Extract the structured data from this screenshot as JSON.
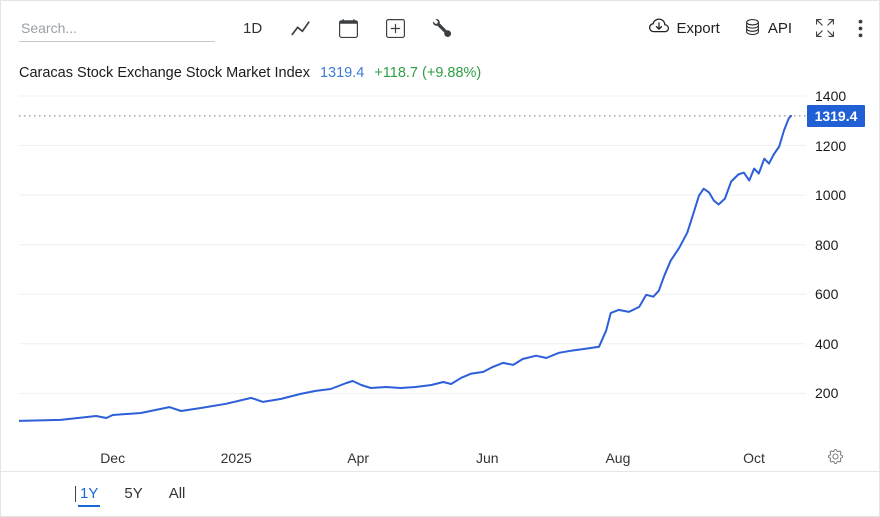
{
  "colors": {
    "line": "#2d5fd9",
    "price_tag_bg": "#2160d4",
    "value_text": "#3d7bd5",
    "change_text": "#2e9e44",
    "active_tab": "#1a68d8"
  },
  "icons": {
    "chart_type": "line-chart-icon",
    "calendar": "calendar-icon",
    "add": "plus-square-icon",
    "tools": "wrench-icon",
    "export": "cloud-download-icon",
    "api": "database-icon",
    "fullscreen": "expand-icon",
    "more": "kebab-menu-icon",
    "settings": "gear-icon"
  },
  "toolbar": {
    "search_placeholder": "Search...",
    "interval_label": "1D",
    "export_label": "Export",
    "api_label": "API"
  },
  "header": {
    "title": "Caracas Stock Exchange Stock Market Index",
    "value": "1319.4",
    "change": "+118.7 (+9.88%)"
  },
  "chart_data": {
    "type": "line",
    "title": "Caracas Stock Exchange Stock Market Index",
    "series_name": "Caracas Stock Exchange Stock Market Index",
    "x_range": "Oct 2024 - Oct 2025 (1Y)",
    "ylim": [
      0,
      1420
    ],
    "y_ticks": [
      200,
      400,
      600,
      800,
      1000,
      1200,
      1400
    ],
    "x_ticks": [
      {
        "label": "Dec",
        "t": 0.119
      },
      {
        "label": "2025",
        "t": 0.276
      },
      {
        "label": "Apr",
        "t": 0.431
      },
      {
        "label": "Jun",
        "t": 0.595
      },
      {
        "label": "Aug",
        "t": 0.761
      },
      {
        "label": "Oct",
        "t": 0.934
      }
    ],
    "grid": "horizontal",
    "legend": "none",
    "line_color": "#2d5fd9",
    "last_value": 1319.4,
    "last_label": "1319.4",
    "points": [
      [
        0.0,
        89
      ],
      [
        0.053,
        93
      ],
      [
        0.098,
        109
      ],
      [
        0.111,
        101
      ],
      [
        0.119,
        113
      ],
      [
        0.155,
        121
      ],
      [
        0.191,
        145
      ],
      [
        0.206,
        129
      ],
      [
        0.231,
        141
      ],
      [
        0.263,
        158
      ],
      [
        0.295,
        182
      ],
      [
        0.31,
        166
      ],
      [
        0.333,
        178
      ],
      [
        0.358,
        198
      ],
      [
        0.377,
        210
      ],
      [
        0.396,
        218
      ],
      [
        0.416,
        242
      ],
      [
        0.424,
        250
      ],
      [
        0.435,
        234
      ],
      [
        0.447,
        222
      ],
      [
        0.466,
        226
      ],
      [
        0.485,
        222
      ],
      [
        0.504,
        226
      ],
      [
        0.524,
        234
      ],
      [
        0.539,
        246
      ],
      [
        0.549,
        238
      ],
      [
        0.562,
        263
      ],
      [
        0.574,
        279
      ],
      [
        0.59,
        287
      ],
      [
        0.602,
        307
      ],
      [
        0.615,
        323
      ],
      [
        0.628,
        315
      ],
      [
        0.64,
        339
      ],
      [
        0.657,
        352
      ],
      [
        0.67,
        343
      ],
      [
        0.686,
        364
      ],
      [
        0.701,
        372
      ],
      [
        0.72,
        380
      ],
      [
        0.737,
        388
      ],
      [
        0.746,
        453
      ],
      [
        0.752,
        525
      ],
      [
        0.762,
        537
      ],
      [
        0.775,
        529
      ],
      [
        0.788,
        549
      ],
      [
        0.797,
        598
      ],
      [
        0.806,
        590
      ],
      [
        0.813,
        614
      ],
      [
        0.82,
        675
      ],
      [
        0.828,
        735
      ],
      [
        0.839,
        788
      ],
      [
        0.849,
        848
      ],
      [
        0.856,
        917
      ],
      [
        0.864,
        998
      ],
      [
        0.87,
        1026
      ],
      [
        0.877,
        1010
      ],
      [
        0.883,
        978
      ],
      [
        0.889,
        962
      ],
      [
        0.897,
        986
      ],
      [
        0.905,
        1055
      ],
      [
        0.914,
        1083
      ],
      [
        0.921,
        1091
      ],
      [
        0.928,
        1059
      ],
      [
        0.934,
        1107
      ],
      [
        0.94,
        1087
      ],
      [
        0.947,
        1147
      ],
      [
        0.953,
        1127
      ],
      [
        0.959,
        1164
      ],
      [
        0.966,
        1196
      ],
      [
        0.972,
        1261
      ],
      [
        0.978,
        1309
      ],
      [
        0.981,
        1319.4
      ]
    ]
  },
  "footer": {
    "tabs": [
      {
        "label": "1Y",
        "active": true
      },
      {
        "label": "5Y",
        "active": false
      },
      {
        "label": "All",
        "active": false
      }
    ]
  }
}
